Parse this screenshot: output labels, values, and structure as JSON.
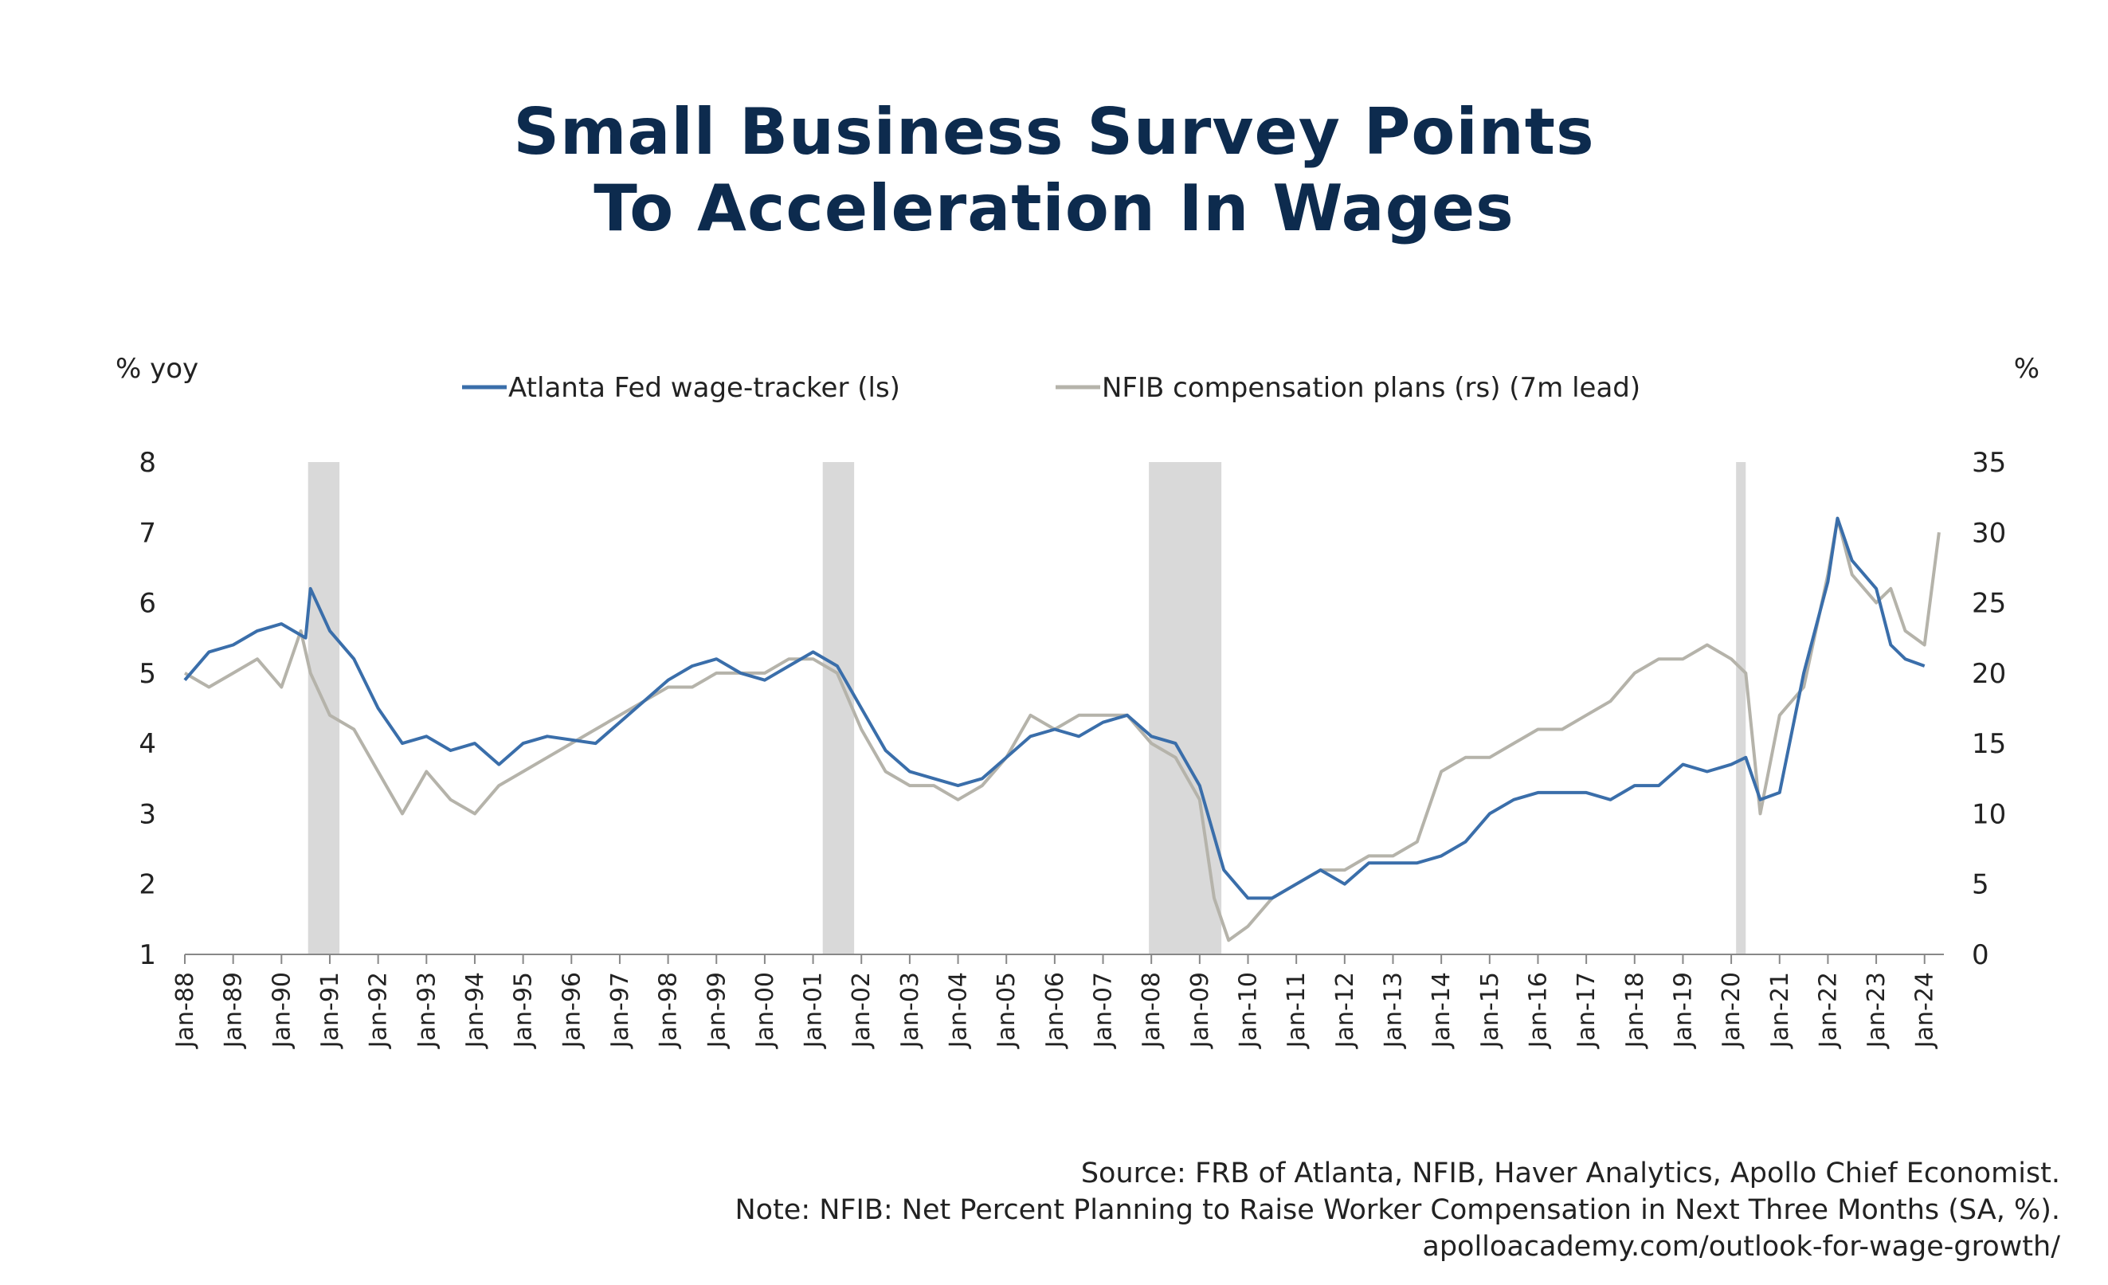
{
  "title_lines": [
    "Small Business Survey Points",
    "To Acceleration In Wages"
  ],
  "source_lines": [
    "Source: FRB of Atlanta, NFIB, Haver Analytics, Apollo Chief Economist.",
    "Note: NFIB: Net Percent Planning to Raise Worker Compensation in Next Three Months (SA, %).",
    "apolloacademy.com/outlook-for-wage-growth/"
  ],
  "chart_data": {
    "type": "line",
    "y_left_label": "% yoy",
    "y_right_label": "%",
    "y_left_range": [
      1,
      8
    ],
    "y_left_ticks": [
      "8",
      "7",
      "6",
      "5",
      "4",
      "3",
      "2",
      "1"
    ],
    "y_right_range": [
      0,
      35
    ],
    "y_right_ticks": [
      "35",
      "30",
      "25",
      "20",
      "15",
      "10",
      "5",
      "0"
    ],
    "x_range": [
      1988.0,
      2024.4
    ],
    "x_ticks": [
      "Jan-88",
      "Jan-89",
      "Jan-90",
      "Jan-91",
      "Jan-92",
      "Jan-93",
      "Jan-94",
      "Jan-95",
      "Jan-96",
      "Jan-97",
      "Jan-98",
      "Jan-99",
      "Jan-00",
      "Jan-01",
      "Jan-02",
      "Jan-03",
      "Jan-04",
      "Jan-05",
      "Jan-06",
      "Jan-07",
      "Jan-08",
      "Jan-09",
      "Jan-10",
      "Jan-11",
      "Jan-12",
      "Jan-13",
      "Jan-14",
      "Jan-15",
      "Jan-16",
      "Jan-17",
      "Jan-18",
      "Jan-19",
      "Jan-20",
      "Jan-21",
      "Jan-22",
      "Jan-23",
      "Jan-24"
    ],
    "grid": false,
    "legend_position": "top-center",
    "recessions": [
      [
        1990.55,
        1991.2
      ],
      [
        2001.2,
        2001.85
      ],
      [
        2007.95,
        2009.45
      ],
      [
        2020.1,
        2020.3
      ]
    ],
    "colors": {
      "atlanta": "#3a6eaa",
      "nfib": "#b5b3aa",
      "recession": "#d9d9d9",
      "title": "#0d2b4e"
    },
    "series": [
      {
        "name": "Atlanta Fed wage-tracker (ls)",
        "axis": "left",
        "x": [
          1988.0,
          1988.5,
          1989.0,
          1989.5,
          1990.0,
          1990.5,
          1990.6,
          1991.0,
          1991.5,
          1992.0,
          1992.5,
          1993.0,
          1993.5,
          1994.0,
          1994.5,
          1995.0,
          1995.5,
          1996.5,
          1997.0,
          1997.5,
          1998.0,
          1998.5,
          1999.0,
          1999.5,
          2000.0,
          2000.5,
          2001.0,
          2001.5,
          2002.0,
          2002.5,
          2003.0,
          2003.5,
          2004.0,
          2004.5,
          2005.0,
          2005.5,
          2006.0,
          2006.5,
          2007.0,
          2007.5,
          2008.0,
          2008.5,
          2009.0,
          2009.5,
          2010.0,
          2010.5,
          2011.0,
          2011.5,
          2012.0,
          2012.5,
          2013.0,
          2013.5,
          2014.0,
          2014.5,
          2015.0,
          2015.5,
          2016.0,
          2016.5,
          2017.0,
          2017.5,
          2018.0,
          2018.5,
          2019.0,
          2019.5,
          2020.0,
          2020.3,
          2020.6,
          2021.0,
          2021.5,
          2022.0,
          2022.2,
          2022.5,
          2023.0,
          2023.3,
          2023.6,
          2024.0
        ],
        "values": [
          4.9,
          5.3,
          5.4,
          5.6,
          5.7,
          5.5,
          6.2,
          5.6,
          5.2,
          4.5,
          4.0,
          4.1,
          3.9,
          4.0,
          3.7,
          4.0,
          4.1,
          4.0,
          4.3,
          4.6,
          4.9,
          5.1,
          5.2,
          5.0,
          4.9,
          5.1,
          5.3,
          5.1,
          4.5,
          3.9,
          3.6,
          3.5,
          3.4,
          3.5,
          3.8,
          4.1,
          4.2,
          4.1,
          4.3,
          4.4,
          4.1,
          4.0,
          3.4,
          2.2,
          1.8,
          1.8,
          2.0,
          2.2,
          2.0,
          2.3,
          2.3,
          2.3,
          2.4,
          2.6,
          3.0,
          3.2,
          3.3,
          3.3,
          3.3,
          3.2,
          3.4,
          3.4,
          3.7,
          3.6,
          3.7,
          3.8,
          3.2,
          3.3,
          5.0,
          6.3,
          7.2,
          6.6,
          6.2,
          5.4,
          5.2,
          5.1
        ]
      },
      {
        "name": "NFIB compensation plans (rs) (7m lead)",
        "axis": "right",
        "x": [
          1988.0,
          1988.5,
          1989.0,
          1989.5,
          1990.0,
          1990.4,
          1990.6,
          1991.0,
          1991.5,
          1992.0,
          1992.5,
          1993.0,
          1993.5,
          1994.0,
          1994.5,
          1995.0,
          1995.5,
          1996.0,
          1996.5,
          1997.0,
          1997.5,
          1998.0,
          1998.5,
          1999.0,
          1999.5,
          2000.0,
          2000.5,
          2001.0,
          2001.5,
          2002.0,
          2002.5,
          2003.0,
          2003.5,
          2004.0,
          2004.5,
          2005.0,
          2005.5,
          2006.0,
          2006.5,
          2007.0,
          2007.5,
          2008.0,
          2008.5,
          2009.0,
          2009.3,
          2009.6,
          2010.0,
          2010.5,
          2011.0,
          2011.5,
          2012.0,
          2012.5,
          2013.0,
          2013.5,
          2014.0,
          2014.5,
          2015.0,
          2015.5,
          2016.0,
          2016.5,
          2017.0,
          2017.5,
          2018.0,
          2018.5,
          2019.0,
          2019.5,
          2020.0,
          2020.3,
          2020.6,
          2021.0,
          2021.5,
          2022.0,
          2022.2,
          2022.5,
          2023.0,
          2023.3,
          2023.6,
          2024.0,
          2024.3
        ],
        "values": [
          20,
          19,
          20,
          21,
          19,
          23,
          20,
          17,
          16,
          13,
          10,
          13,
          11,
          10,
          12,
          13,
          14,
          15,
          16,
          17,
          18,
          19,
          19,
          20,
          20,
          20,
          21,
          21,
          20,
          16,
          13,
          12,
          12,
          11,
          12,
          14,
          17,
          16,
          17,
          17,
          17,
          15,
          14,
          11,
          4,
          1,
          2,
          4,
          5,
          6,
          6,
          7,
          7,
          8,
          13,
          14,
          14,
          15,
          16,
          16,
          17,
          18,
          20,
          21,
          21,
          22,
          21,
          20,
          10,
          17,
          19,
          27,
          31,
          27,
          25,
          26,
          23,
          22,
          30
        ]
      }
    ]
  }
}
